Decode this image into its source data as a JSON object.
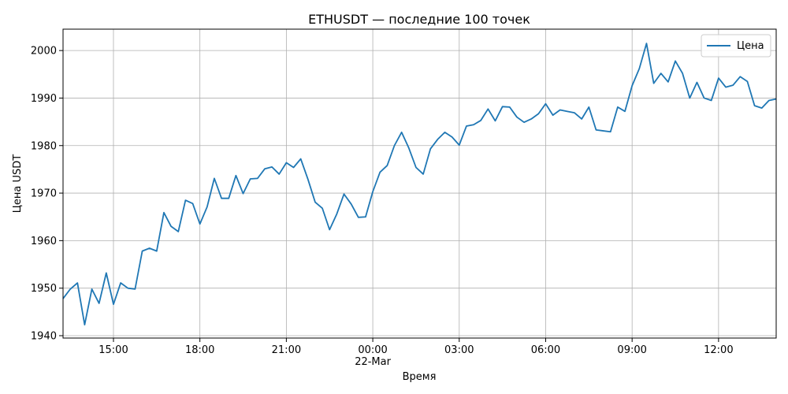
{
  "chart_data": {
    "type": "line",
    "title": "ETHUSDT — последние 100 точек",
    "xlabel": "Время",
    "ylabel": "Цена USDT",
    "x_start": "2024-03-21 13:15",
    "x_end": "2024-03-22 14:00",
    "x_ticks": [
      {
        "time": "2024-03-21 15:00",
        "label": "15:00"
      },
      {
        "time": "2024-03-21 18:00",
        "label": "18:00"
      },
      {
        "time": "2024-03-21 21:00",
        "label": "21:00"
      },
      {
        "time": "2024-03-22 00:00",
        "label": "00:00",
        "sublabel": "22-Mar"
      },
      {
        "time": "2024-03-22 03:00",
        "label": "03:00"
      },
      {
        "time": "2024-03-22 06:00",
        "label": "06:00"
      },
      {
        "time": "2024-03-22 09:00",
        "label": "09:00"
      },
      {
        "time": "2024-03-22 12:00",
        "label": "12:00"
      }
    ],
    "ylim": [
      1939.5,
      2004.5
    ],
    "y_ticks": [
      1940,
      1950,
      1960,
      1970,
      1980,
      1990,
      2000
    ],
    "grid": true,
    "legend": "top-right",
    "series": [
      {
        "name": "Цена",
        "color": "#1f77b4",
        "x": [
          "2024-03-21 13:15",
          "2024-03-21 13:30",
          "2024-03-21 13:45",
          "2024-03-21 14:00",
          "2024-03-21 14:15",
          "2024-03-21 14:30",
          "2024-03-21 14:45",
          "2024-03-21 15:00",
          "2024-03-21 15:15",
          "2024-03-21 15:30",
          "2024-03-21 15:45",
          "2024-03-21 16:00",
          "2024-03-21 16:15",
          "2024-03-21 16:30",
          "2024-03-21 16:45",
          "2024-03-21 17:00",
          "2024-03-21 17:15",
          "2024-03-21 17:30",
          "2024-03-21 17:45",
          "2024-03-21 18:00",
          "2024-03-21 18:15",
          "2024-03-21 18:30",
          "2024-03-21 18:45",
          "2024-03-21 19:00",
          "2024-03-21 19:15",
          "2024-03-21 19:30",
          "2024-03-21 19:45",
          "2024-03-21 20:00",
          "2024-03-21 20:15",
          "2024-03-21 20:30",
          "2024-03-21 20:45",
          "2024-03-21 21:00",
          "2024-03-21 21:15",
          "2024-03-21 21:30",
          "2024-03-21 21:45",
          "2024-03-21 22:00",
          "2024-03-21 22:15",
          "2024-03-21 22:30",
          "2024-03-21 22:45",
          "2024-03-21 23:00",
          "2024-03-21 23:15",
          "2024-03-21 23:30",
          "2024-03-21 23:45",
          "2024-03-22 00:00",
          "2024-03-22 00:15",
          "2024-03-22 00:30",
          "2024-03-22 00:45",
          "2024-03-22 01:00",
          "2024-03-22 01:15",
          "2024-03-22 01:30",
          "2024-03-22 01:45",
          "2024-03-22 02:00",
          "2024-03-22 02:15",
          "2024-03-22 02:30",
          "2024-03-22 02:45",
          "2024-03-22 03:00",
          "2024-03-22 03:15",
          "2024-03-22 03:30",
          "2024-03-22 03:45",
          "2024-03-22 04:00",
          "2024-03-22 04:15",
          "2024-03-22 04:30",
          "2024-03-22 04:45",
          "2024-03-22 05:00",
          "2024-03-22 05:15",
          "2024-03-22 05:30",
          "2024-03-22 05:45",
          "2024-03-22 06:00",
          "2024-03-22 06:15",
          "2024-03-22 06:30",
          "2024-03-22 06:45",
          "2024-03-22 07:00",
          "2024-03-22 07:15",
          "2024-03-22 07:30",
          "2024-03-22 07:45",
          "2024-03-22 08:00",
          "2024-03-22 08:15",
          "2024-03-22 08:30",
          "2024-03-22 08:45",
          "2024-03-22 09:00",
          "2024-03-22 09:15",
          "2024-03-22 09:30",
          "2024-03-22 09:45",
          "2024-03-22 10:00",
          "2024-03-22 10:15",
          "2024-03-22 10:30",
          "2024-03-22 10:45",
          "2024-03-22 11:00",
          "2024-03-22 11:15",
          "2024-03-22 11:30",
          "2024-03-22 11:45",
          "2024-03-22 12:00",
          "2024-03-22 12:15",
          "2024-03-22 12:30",
          "2024-03-22 12:45",
          "2024-03-22 13:00",
          "2024-03-22 13:15",
          "2024-03-22 13:30",
          "2024-03-22 13:45",
          "2024-03-22 14:00"
        ],
        "values": [
          1947.8,
          1949.8,
          1951.1,
          1942.3,
          1949.8,
          1946.8,
          1953.2,
          1946.6,
          1951.1,
          1950.0,
          1949.8,
          1957.8,
          1958.4,
          1957.8,
          1965.9,
          1963.0,
          1961.9,
          1968.5,
          1967.8,
          1963.5,
          1967.1,
          1973.1,
          1968.9,
          1968.9,
          1973.7,
          1969.9,
          1973.0,
          1973.1,
          1975.1,
          1975.5,
          1974.0,
          1976.4,
          1975.4,
          1977.2,
          1972.9,
          1968.1,
          1966.8,
          1962.3,
          1965.6,
          1969.8,
          1967.7,
          1964.9,
          1965.0,
          1970.3,
          1974.4,
          1975.8,
          1980.0,
          1982.8,
          1979.5,
          1975.4,
          1974.0,
          1979.3,
          1981.3,
          1982.8,
          1981.8,
          1980.1,
          1984.1,
          1984.4,
          1985.3,
          1987.7,
          1985.2,
          1988.2,
          1988.1,
          1986.0,
          1984.9,
          1985.6,
          1986.7,
          1988.8,
          1986.4,
          1987.5,
          1987.2,
          1986.9,
          1985.6,
          1988.1,
          1983.3,
          1983.1,
          1982.9,
          1988.1,
          1987.2,
          1992.6,
          1996.2,
          2001.5,
          1993.1,
          1995.2,
          1993.4,
          1997.8,
          1995.2,
          1990.0,
          1993.3,
          1990.0,
          1989.5,
          1994.2,
          1992.3,
          1992.7,
          1994.5,
          1993.5,
          1988.4,
          1987.9,
          1989.5,
          1989.8
        ]
      }
    ]
  }
}
